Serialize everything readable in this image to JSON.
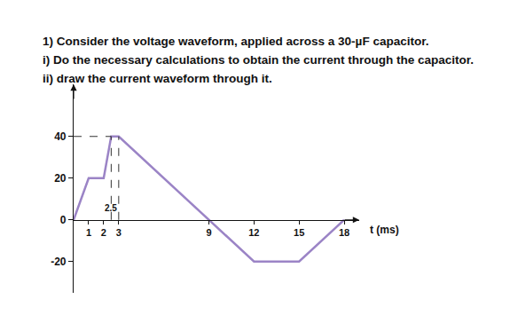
{
  "problem": {
    "lines": [
      "1) Consider the voltage waveform, applied across a 30-µF capacitor.",
      "i) Do the necessary calculations to obtain the current through the capacitor.",
      "ii) draw the current waveform through it."
    ]
  },
  "chart_data": {
    "type": "line",
    "x": [
      0,
      1,
      2,
      2.5,
      3,
      12,
      15,
      18
    ],
    "values": [
      0,
      20,
      20,
      40,
      40,
      -20,
      -20,
      0
    ],
    "color": "#9b84c6",
    "xlim": [
      0,
      19
    ],
    "ylim": [
      -35,
      65
    ],
    "xticks": [
      1,
      2,
      3,
      9,
      12,
      15,
      18
    ],
    "yticks": [
      -20,
      0,
      20,
      40
    ],
    "xlabel": "t (ms)",
    "annotations": [
      {
        "x": 2.5,
        "y": 0,
        "text": "2.5"
      }
    ],
    "grid": false
  }
}
